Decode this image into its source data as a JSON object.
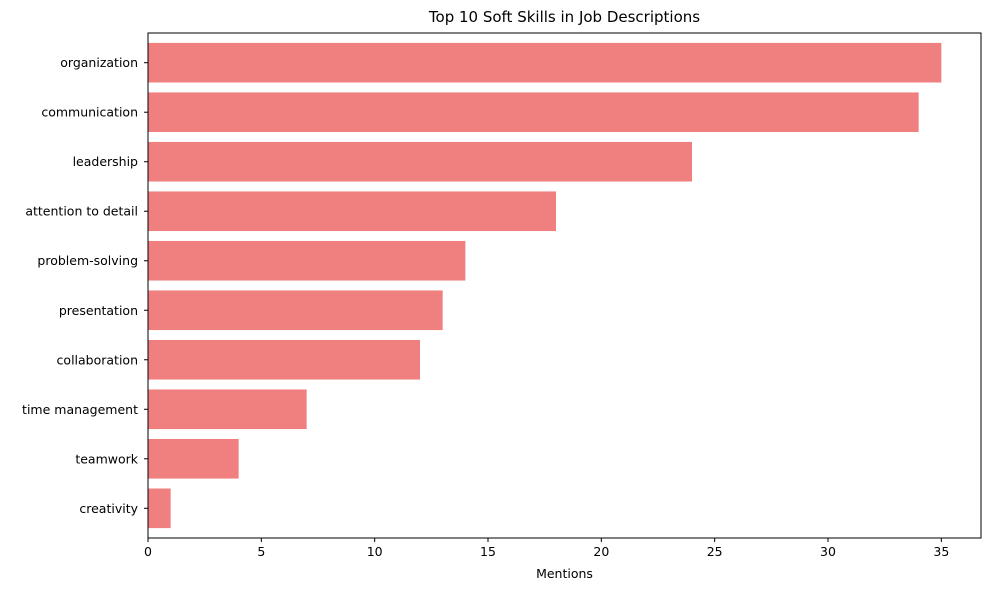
{
  "chart_data": {
    "type": "bar",
    "orientation": "horizontal",
    "title": "Top 10 Soft Skills in Job Descriptions",
    "xlabel": "Mentions",
    "ylabel": "",
    "categories": [
      "organization",
      "communication",
      "leadership",
      "attention to detail",
      "problem-solving",
      "presentation",
      "collaboration",
      "time management",
      "teamwork",
      "creativity"
    ],
    "values": [
      35,
      34,
      24,
      18,
      14,
      13,
      12,
      7,
      4,
      1
    ],
    "xlim": [
      0,
      36.75
    ],
    "xticks": [
      0,
      5,
      10,
      15,
      20,
      25,
      30,
      35
    ],
    "grid": false,
    "legend": "none",
    "bar_color": "#f08080"
  }
}
